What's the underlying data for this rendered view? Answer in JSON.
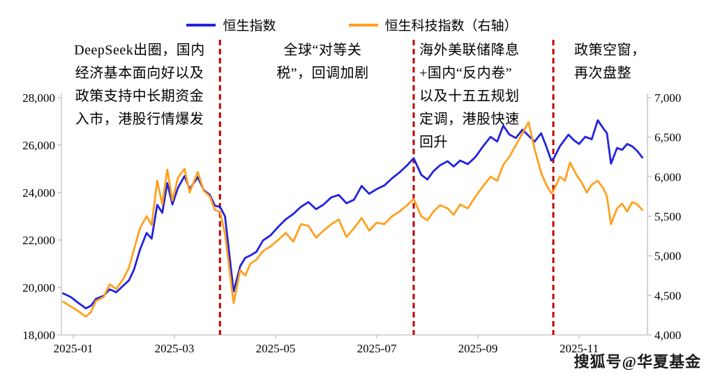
{
  "watermark": "搜狐号@华夏基金",
  "chart_data": {
    "type": "line",
    "title": "",
    "legend": [
      {
        "label": "恒生指数",
        "color": "#2222E0"
      },
      {
        "label": "恒生科技指数（右轴）",
        "color": "#FFA01E"
      }
    ],
    "x_axis": {
      "ticks": [
        {
          "t": 0,
          "label": "2025-01"
        },
        {
          "t": 2,
          "label": "2025-03"
        },
        {
          "t": 4,
          "label": "2025-05"
        },
        {
          "t": 6,
          "label": "2025-07"
        },
        {
          "t": 8,
          "label": "2025-09"
        },
        {
          "t": 10,
          "label": "2025-11"
        }
      ]
    },
    "y_axis_left": {
      "min": 18000,
      "max": 28000,
      "tick_values": [
        18000,
        20000,
        22000,
        24000,
        26000,
        28000
      ],
      "tick_labels": [
        "18,000",
        "20,000",
        "22,000",
        "24,000",
        "26,000",
        "28,000"
      ]
    },
    "y_axis_right": {
      "min": 4000,
      "max": 7000,
      "tick_values": [
        4000,
        4500,
        5000,
        5500,
        6000,
        6500,
        7000
      ],
      "tick_labels": [
        "4,000",
        "4,500",
        "5,000",
        "5,500",
        "6,000",
        "6,500",
        "7,000"
      ]
    },
    "event_lines": {
      "color": "#C00000",
      "t_values": [
        2.9,
        6.73,
        9.49
      ]
    },
    "annotations": [
      {
        "align": "center",
        "lines": [
          "DeepSeek出圈，国内",
          "经济基本面向好以及",
          "政策支持中长期资金",
          "入市，港股行情爆发"
        ]
      },
      {
        "align": "center",
        "lines": [
          "全球“对等关",
          "税”，回调加剧"
        ]
      },
      {
        "align": "left",
        "lines": [
          "海外美联储降息",
          "+国内“反内卷”",
          "以及十五五规划",
          "定调，港股快速",
          "回升"
        ]
      },
      {
        "align": "left",
        "lines": [
          "政策空窗，",
          "再次盘整"
        ]
      }
    ],
    "series": [
      {
        "name": "恒生指数",
        "axis": "left",
        "color": "#2222E0",
        "points": [
          [
            -0.2,
            19750
          ],
          [
            -0.05,
            19600
          ],
          [
            0.1,
            19350
          ],
          [
            0.25,
            19120
          ],
          [
            0.35,
            19230
          ],
          [
            0.45,
            19520
          ],
          [
            0.6,
            19650
          ],
          [
            0.72,
            19920
          ],
          [
            0.85,
            19800
          ],
          [
            1.0,
            20100
          ],
          [
            1.1,
            20300
          ],
          [
            1.2,
            20750
          ],
          [
            1.32,
            21600
          ],
          [
            1.45,
            22300
          ],
          [
            1.55,
            22060
          ],
          [
            1.66,
            23480
          ],
          [
            1.76,
            23150
          ],
          [
            1.86,
            24400
          ],
          [
            1.96,
            23500
          ],
          [
            2.07,
            24200
          ],
          [
            2.2,
            24700
          ],
          [
            2.3,
            24150
          ],
          [
            2.46,
            24650
          ],
          [
            2.58,
            24100
          ],
          [
            2.7,
            23900
          ],
          [
            2.8,
            23450
          ],
          [
            2.9,
            23400
          ],
          [
            3.0,
            23000
          ],
          [
            3.17,
            19830
          ],
          [
            3.3,
            20900
          ],
          [
            3.4,
            21250
          ],
          [
            3.5,
            21350
          ],
          [
            3.62,
            21500
          ],
          [
            3.75,
            21980
          ],
          [
            3.9,
            22200
          ],
          [
            4.05,
            22550
          ],
          [
            4.2,
            22870
          ],
          [
            4.35,
            23100
          ],
          [
            4.5,
            23400
          ],
          [
            4.65,
            23600
          ],
          [
            4.8,
            23300
          ],
          [
            4.95,
            23500
          ],
          [
            5.1,
            23800
          ],
          [
            5.25,
            23900
          ],
          [
            5.4,
            23550
          ],
          [
            5.55,
            23700
          ],
          [
            5.7,
            24280
          ],
          [
            5.85,
            23950
          ],
          [
            6.0,
            24150
          ],
          [
            6.15,
            24300
          ],
          [
            6.3,
            24600
          ],
          [
            6.45,
            24850
          ],
          [
            6.6,
            25150
          ],
          [
            6.73,
            25450
          ],
          [
            6.88,
            24750
          ],
          [
            7.0,
            24550
          ],
          [
            7.12,
            24900
          ],
          [
            7.25,
            25150
          ],
          [
            7.4,
            25320
          ],
          [
            7.52,
            25100
          ],
          [
            7.65,
            25350
          ],
          [
            7.8,
            25200
          ],
          [
            7.95,
            25500
          ],
          [
            8.1,
            25950
          ],
          [
            8.25,
            26350
          ],
          [
            8.38,
            26150
          ],
          [
            8.5,
            26820
          ],
          [
            8.62,
            26450
          ],
          [
            8.75,
            26300
          ],
          [
            8.88,
            26650
          ],
          [
            9.0,
            26400
          ],
          [
            9.12,
            26150
          ],
          [
            9.25,
            26500
          ],
          [
            9.35,
            25950
          ],
          [
            9.45,
            25350
          ],
          [
            9.5,
            25450
          ],
          [
            9.62,
            25950
          ],
          [
            9.79,
            26440
          ],
          [
            9.9,
            26200
          ],
          [
            10.0,
            26050
          ],
          [
            10.12,
            26350
          ],
          [
            10.25,
            26250
          ],
          [
            10.37,
            27050
          ],
          [
            10.48,
            26700
          ],
          [
            10.55,
            26500
          ],
          [
            10.63,
            25220
          ],
          [
            10.75,
            25880
          ],
          [
            10.85,
            25800
          ],
          [
            10.95,
            26050
          ],
          [
            11.05,
            25950
          ],
          [
            11.15,
            25750
          ],
          [
            11.25,
            25480
          ]
        ]
      },
      {
        "name": "恒生科技指数（右轴）",
        "axis": "right",
        "color": "#FFA01E",
        "points": [
          [
            -0.2,
            4420
          ],
          [
            -0.05,
            4360
          ],
          [
            0.1,
            4300
          ],
          [
            0.25,
            4230
          ],
          [
            0.35,
            4290
          ],
          [
            0.45,
            4430
          ],
          [
            0.6,
            4480
          ],
          [
            0.72,
            4640
          ],
          [
            0.85,
            4580
          ],
          [
            1.0,
            4720
          ],
          [
            1.1,
            4850
          ],
          [
            1.2,
            5080
          ],
          [
            1.32,
            5350
          ],
          [
            1.45,
            5500
          ],
          [
            1.55,
            5390
          ],
          [
            1.66,
            5950
          ],
          [
            1.76,
            5650
          ],
          [
            1.86,
            6090
          ],
          [
            1.96,
            5700
          ],
          [
            2.07,
            5990
          ],
          [
            2.2,
            6100
          ],
          [
            2.3,
            5800
          ],
          [
            2.46,
            6060
          ],
          [
            2.58,
            5820
          ],
          [
            2.7,
            5750
          ],
          [
            2.8,
            5580
          ],
          [
            2.9,
            5560
          ],
          [
            3.0,
            5280
          ],
          [
            3.17,
            4400
          ],
          [
            3.3,
            4820
          ],
          [
            3.4,
            4750
          ],
          [
            3.5,
            4900
          ],
          [
            3.62,
            4950
          ],
          [
            3.75,
            5060
          ],
          [
            3.9,
            5120
          ],
          [
            4.05,
            5200
          ],
          [
            4.2,
            5290
          ],
          [
            4.35,
            5180
          ],
          [
            4.5,
            5400
          ],
          [
            4.65,
            5380
          ],
          [
            4.8,
            5230
          ],
          [
            4.95,
            5320
          ],
          [
            5.1,
            5400
          ],
          [
            5.25,
            5460
          ],
          [
            5.4,
            5240
          ],
          [
            5.55,
            5350
          ],
          [
            5.7,
            5480
          ],
          [
            5.85,
            5320
          ],
          [
            6.0,
            5420
          ],
          [
            6.15,
            5400
          ],
          [
            6.3,
            5500
          ],
          [
            6.45,
            5560
          ],
          [
            6.6,
            5640
          ],
          [
            6.73,
            5720
          ],
          [
            6.88,
            5500
          ],
          [
            7.0,
            5450
          ],
          [
            7.12,
            5560
          ],
          [
            7.25,
            5640
          ],
          [
            7.4,
            5600
          ],
          [
            7.52,
            5520
          ],
          [
            7.65,
            5650
          ],
          [
            7.8,
            5600
          ],
          [
            7.95,
            5750
          ],
          [
            8.1,
            5880
          ],
          [
            8.25,
            6000
          ],
          [
            8.38,
            5950
          ],
          [
            8.5,
            6150
          ],
          [
            8.62,
            6250
          ],
          [
            8.75,
            6400
          ],
          [
            8.88,
            6550
          ],
          [
            9.0,
            6690
          ],
          [
            9.12,
            6350
          ],
          [
            9.25,
            6050
          ],
          [
            9.35,
            5900
          ],
          [
            9.45,
            5790
          ],
          [
            9.5,
            5830
          ],
          [
            9.62,
            6000
          ],
          [
            9.72,
            5950
          ],
          [
            9.82,
            6180
          ],
          [
            9.95,
            6020
          ],
          [
            10.05,
            5930
          ],
          [
            10.15,
            5800
          ],
          [
            10.25,
            5900
          ],
          [
            10.37,
            5950
          ],
          [
            10.48,
            5850
          ],
          [
            10.55,
            5750
          ],
          [
            10.63,
            5400
          ],
          [
            10.75,
            5600
          ],
          [
            10.85,
            5660
          ],
          [
            10.95,
            5560
          ],
          [
            11.05,
            5680
          ],
          [
            11.15,
            5650
          ],
          [
            11.25,
            5580
          ]
        ]
      }
    ]
  }
}
